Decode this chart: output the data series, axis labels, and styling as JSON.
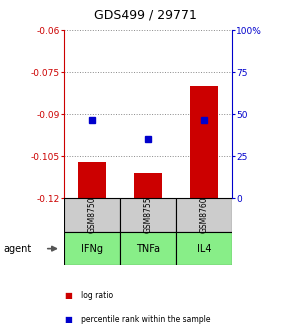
{
  "title": "GDS499 / 29771",
  "samples": [
    "GSM8750",
    "GSM8755",
    "GSM8760"
  ],
  "agents": [
    "IFNg",
    "TNFa",
    "IL4"
  ],
  "bar_values": [
    -0.107,
    -0.111,
    -0.08
  ],
  "dot_values": [
    -0.092,
    -0.099,
    -0.092
  ],
  "ylim_left": [
    -0.12,
    -0.06
  ],
  "ylim_right": [
    0,
    100
  ],
  "yticks_left": [
    -0.12,
    -0.105,
    -0.09,
    -0.075,
    -0.06
  ],
  "ytick_labels_left": [
    "-0.12",
    "-0.105",
    "-0.09",
    "-0.075",
    "-0.06"
  ],
  "yticks_right": [
    0,
    25,
    50,
    75,
    100
  ],
  "ytick_labels_right": [
    "0",
    "25",
    "50",
    "75",
    "100%"
  ],
  "bar_color": "#cc0000",
  "dot_color": "#0000cc",
  "sample_box_color": "#cccccc",
  "agent_box_color": "#88ee88",
  "title_color": "#000000",
  "left_axis_color": "#cc0000",
  "right_axis_color": "#0000cc",
  "bar_width": 0.5,
  "grid_color": "#888888",
  "legend_items": [
    "log ratio",
    "percentile rank within the sample"
  ]
}
